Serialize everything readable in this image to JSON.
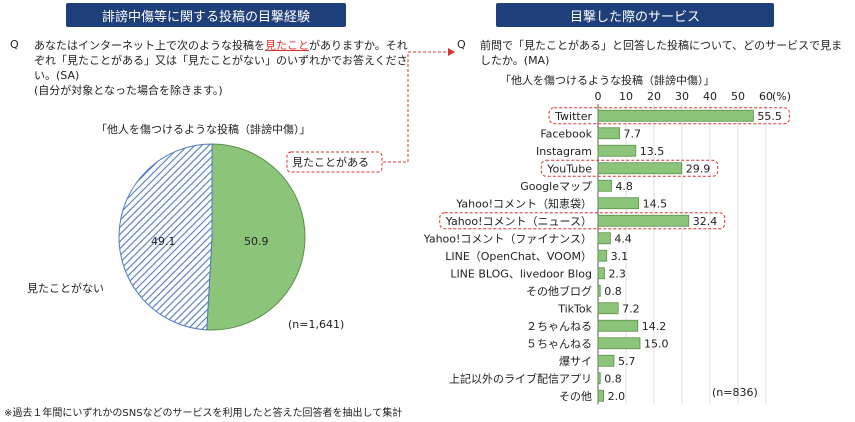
{
  "left": {
    "header": "誹謗中傷等に関する投稿の目撃経験",
    "q_mark": "Q",
    "q_part1": "あなたはインターネット上で次のような投稿を",
    "q_highlight": "見たこと",
    "q_part2": "がありますか。それぞれ「見たことがある」又は「見たことがない」のいずれかでお答えください。(SA)",
    "q_note": "(自分が対象となった場合を除きます。)",
    "pie_title": "「他人を傷つけるような投稿（誹謗中傷）」",
    "seen_label": "見たことがある",
    "unseen_label": "見たことがない",
    "n_label": "(n=1,641)"
  },
  "right": {
    "header": "目撃した際のサービス",
    "q_mark": "Q",
    "q_text": "前問で「見たことがある」と回答した投稿について、どのサービスで見ましたか。(MA)",
    "chart_title": "「他人を傷つけるような投稿（誹謗中傷）」",
    "pct_unit": "(%)",
    "n_label": "(n=836)"
  },
  "footnote": "※過去１年間にいずれかのSNSなどのサービスを利用したと答えた回答者を抽出して集計",
  "colors": {
    "header_bg": "#1f3f7a",
    "bar": "#8cc47a",
    "bar_border": "#5a8f4a",
    "hatch": "#4f79c2",
    "highlight": "#d9342b"
  },
  "chart_data": [
    {
      "type": "pie",
      "title": "「他人を傷つけるような投稿（誹謗中傷）」",
      "categories": [
        "見たことがある",
        "見たことがない"
      ],
      "values": [
        50.9,
        49.1
      ],
      "note": "(n=1,641)"
    },
    {
      "type": "bar",
      "orientation": "horizontal",
      "title": "「他人を傷つけるような投稿（誹謗中傷）」",
      "xlim": [
        0,
        60
      ],
      "xticks": [
        0,
        10,
        20,
        30,
        40,
        50,
        60
      ],
      "unit": "(%)",
      "categories": [
        "Twitter",
        "Facebook",
        "Instagram",
        "YouTube",
        "Googleマップ",
        "Yahoo!コメント（知恵袋）",
        "Yahoo!コメント（ニュース）",
        "Yahoo!コメント（ファイナンス）",
        "LINE（OpenChat、VOOM）",
        "LINE BLOG、livedoor Blog",
        "その他ブログ",
        "TikTok",
        "２ちゃんねる",
        "５ちゃんねる",
        "爆サイ",
        "上記以外のライブ配信アプリ",
        "その他"
      ],
      "values": [
        55.5,
        7.7,
        13.5,
        29.9,
        4.8,
        14.5,
        32.4,
        4.4,
        3.1,
        2.3,
        0.8,
        7.2,
        14.2,
        15.0,
        5.7,
        0.8,
        2.0
      ],
      "value_labels": [
        "55.5",
        "7.7",
        "13.5",
        "29.9",
        "4.8",
        "14.5",
        "32.4",
        "4.4",
        "3.1",
        "2.3",
        "0.8",
        "7.2",
        "14.2",
        "15.0",
        "5.7",
        "0.8",
        "2.0"
      ],
      "highlighted": [
        "Twitter",
        "YouTube",
        "Yahoo!コメント（ニュース）"
      ],
      "note": "(n=836)"
    }
  ]
}
